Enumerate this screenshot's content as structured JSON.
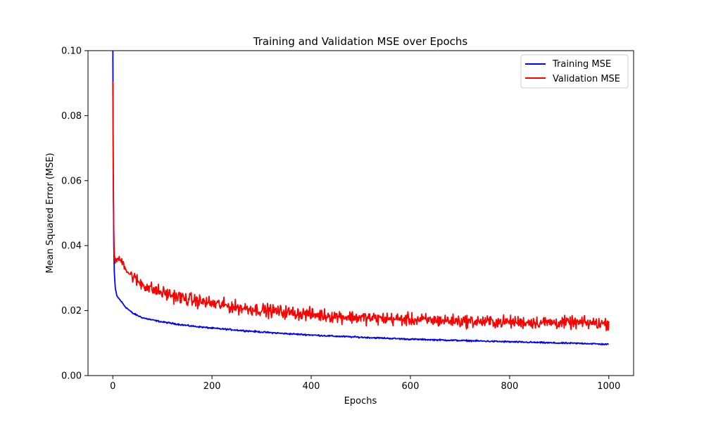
{
  "chart_data": {
    "type": "line",
    "title": "Training and Validation MSE over Epochs",
    "xlabel": "Epochs",
    "ylabel": "Mean Squared Error (MSE)",
    "xlim": [
      -50,
      1050
    ],
    "ylim": [
      0,
      0.1
    ],
    "x_ticks": [
      0,
      200,
      400,
      600,
      800,
      1000
    ],
    "y_ticks": [
      0.0,
      0.02,
      0.04,
      0.06,
      0.08,
      0.1
    ],
    "x_tick_labels": [
      "0",
      "200",
      "400",
      "600",
      "800",
      "1000"
    ],
    "y_tick_labels": [
      "0.00",
      "0.02",
      "0.04",
      "0.06",
      "0.08",
      "0.10"
    ],
    "grid": false,
    "legend_position": "top-right",
    "series": [
      {
        "name": "Training MSE",
        "color": "#0000ff",
        "points": [
          [
            0,
            0.105
          ],
          [
            1,
            0.06
          ],
          [
            2,
            0.04
          ],
          [
            3,
            0.032
          ],
          [
            5,
            0.027
          ],
          [
            8,
            0.0245
          ],
          [
            15,
            0.0232
          ],
          [
            25,
            0.0212
          ],
          [
            40,
            0.0192
          ],
          [
            60,
            0.0178
          ],
          [
            80,
            0.0171
          ],
          [
            100,
            0.0165
          ],
          [
            150,
            0.0154
          ],
          [
            200,
            0.0146
          ],
          [
            250,
            0.014
          ],
          [
            300,
            0.0134
          ],
          [
            350,
            0.0129
          ],
          [
            400,
            0.0125
          ],
          [
            450,
            0.0121
          ],
          [
            500,
            0.0118
          ],
          [
            550,
            0.0115
          ],
          [
            600,
            0.0112
          ],
          [
            650,
            0.011
          ],
          [
            700,
            0.0108
          ],
          [
            750,
            0.0106
          ],
          [
            800,
            0.0104
          ],
          [
            850,
            0.0102
          ],
          [
            900,
            0.01
          ],
          [
            950,
            0.0099
          ],
          [
            1000,
            0.0096
          ]
        ]
      },
      {
        "name": "Validation MSE",
        "color": "#ff0000",
        "points": [
          [
            0,
            0.09
          ],
          [
            1,
            0.06
          ],
          [
            2,
            0.045
          ],
          [
            3,
            0.038
          ],
          [
            5,
            0.035
          ],
          [
            10,
            0.036
          ],
          [
            20,
            0.035
          ],
          [
            30,
            0.032
          ],
          [
            50,
            0.029
          ],
          [
            80,
            0.0265
          ],
          [
            100,
            0.0255
          ],
          [
            150,
            0.0235
          ],
          [
            200,
            0.0222
          ],
          [
            250,
            0.021
          ],
          [
            300,
            0.0202
          ],
          [
            350,
            0.0195
          ],
          [
            400,
            0.0188
          ],
          [
            450,
            0.0183
          ],
          [
            500,
            0.0178
          ],
          [
            550,
            0.0175
          ],
          [
            600,
            0.0172
          ],
          [
            650,
            0.017
          ],
          [
            700,
            0.0168
          ],
          [
            750,
            0.0166
          ],
          [
            800,
            0.0165
          ],
          [
            850,
            0.0164
          ],
          [
            900,
            0.0163
          ],
          [
            950,
            0.0162
          ],
          [
            1000,
            0.016
          ]
        ],
        "noise_amplitude": [
          [
            0,
            0.001
          ],
          [
            50,
            0.0032
          ],
          [
            200,
            0.003
          ],
          [
            1000,
            0.0028
          ]
        ]
      }
    ]
  }
}
